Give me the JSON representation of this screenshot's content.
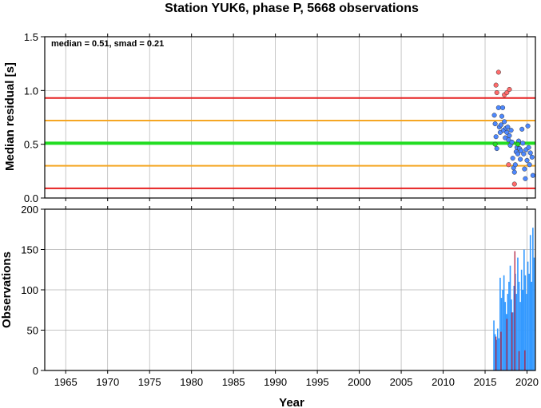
{
  "chart_data": [
    {
      "type": "scatter",
      "title": "Station YUK6, phase P, 5668 observations",
      "annotation": "median = 0.51, smad = 0.21",
      "ylabel": "Median residual [s]",
      "xlabel": "",
      "xlim": [
        1962.5,
        2021.0
      ],
      "ylim": [
        0.0,
        1.5
      ],
      "yticks": [
        "0.0",
        "0.5",
        "1.0",
        "1.5"
      ],
      "grid": true,
      "reference_lines": [
        {
          "value": 0.93,
          "color": "#e62020"
        },
        {
          "value": 0.72,
          "color": "#f5a623"
        },
        {
          "value": 0.51,
          "color": "#22dd22"
        },
        {
          "value": 0.3,
          "color": "#f5a623"
        },
        {
          "value": 0.09,
          "color": "#e62020"
        }
      ],
      "series": [
        {
          "color": "#ff6b6b",
          "points": [
            [
              2016.3,
              1.05
            ],
            [
              2016.4,
              0.98
            ],
            [
              2016.6,
              1.17
            ],
            [
              2017.3,
              0.96
            ],
            [
              2017.6,
              0.98
            ],
            [
              2017.9,
              1.01
            ],
            [
              2017.8,
              0.31
            ],
            [
              2018.5,
              0.13
            ]
          ]
        },
        {
          "color": "#4d88ff",
          "points": [
            [
              2016.1,
              0.77
            ],
            [
              2016.2,
              0.69
            ],
            [
              2016.3,
              0.57
            ],
            [
              2016.4,
              0.46
            ],
            [
              2016.6,
              0.84
            ],
            [
              2016.7,
              0.66
            ],
            [
              2016.8,
              0.61
            ],
            [
              2016.9,
              0.68
            ],
            [
              2017.0,
              0.76
            ],
            [
              2017.1,
              0.84
            ],
            [
              2017.2,
              0.63
            ],
            [
              2017.3,
              0.71
            ],
            [
              2017.4,
              0.56
            ],
            [
              2017.5,
              0.65
            ],
            [
              2017.6,
              0.61
            ],
            [
              2017.7,
              0.66
            ],
            [
              2017.8,
              0.54
            ],
            [
              2017.9,
              0.58
            ],
            [
              2018.0,
              0.49
            ],
            [
              2018.1,
              0.63
            ],
            [
              2018.2,
              0.52
            ],
            [
              2018.3,
              0.37
            ],
            [
              2018.4,
              0.28
            ],
            [
              2018.5,
              0.24
            ],
            [
              2018.6,
              0.31
            ],
            [
              2018.7,
              0.43
            ],
            [
              2018.8,
              0.47
            ],
            [
              2018.9,
              0.41
            ],
            [
              2019.0,
              0.53
            ],
            [
              2019.1,
              0.46
            ],
            [
              2019.2,
              0.36
            ],
            [
              2019.3,
              0.44
            ],
            [
              2019.4,
              0.64
            ],
            [
              2019.5,
              0.51
            ],
            [
              2019.6,
              0.41
            ],
            [
              2019.7,
              0.27
            ],
            [
              2019.8,
              0.18
            ],
            [
              2019.9,
              0.45
            ],
            [
              2020.0,
              0.35
            ],
            [
              2020.1,
              0.67
            ],
            [
              2020.2,
              0.47
            ],
            [
              2020.3,
              0.31
            ],
            [
              2020.4,
              0.42
            ],
            [
              2020.6,
              0.38
            ],
            [
              2020.7,
              0.21
            ]
          ]
        },
        {
          "color": "#22dd22",
          "points": [
            [
              2016.2,
              0.5
            ],
            [
              2018.9,
              0.5
            ]
          ]
        }
      ]
    },
    {
      "type": "bar",
      "ylabel": "Observations",
      "xlabel": "Year",
      "xlim": [
        1962.5,
        2021.0
      ],
      "ylim": [
        0,
        200
      ],
      "yticks": [
        "0",
        "50",
        "100",
        "150",
        "200"
      ],
      "xticks": [
        "1965",
        "1970",
        "1975",
        "1980",
        "1985",
        "1990",
        "1995",
        "2000",
        "2005",
        "2010",
        "2015",
        "2020"
      ],
      "grid": true,
      "series": [
        {
          "color": "#3399ff",
          "points": [
            [
              2016.05,
              62
            ],
            [
              2016.2,
              45
            ],
            [
              2016.35,
              38
            ],
            [
              2016.5,
              52
            ],
            [
              2016.65,
              40
            ],
            [
              2016.8,
              115
            ],
            [
              2016.95,
              90
            ],
            [
              2017.1,
              100
            ],
            [
              2017.25,
              118
            ],
            [
              2017.4,
              85
            ],
            [
              2017.55,
              70
            ],
            [
              2017.7,
              95
            ],
            [
              2017.85,
              110
            ],
            [
              2018.0,
              130
            ],
            [
              2018.15,
              88
            ],
            [
              2018.3,
              72
            ],
            [
              2018.45,
              105
            ],
            [
              2018.6,
              120
            ],
            [
              2018.75,
              95
            ],
            [
              2018.9,
              140
            ],
            [
              2019.05,
              110
            ],
            [
              2019.2,
              85
            ],
            [
              2019.35,
              125
            ],
            [
              2019.5,
              100
            ],
            [
              2019.65,
              150
            ],
            [
              2019.8,
              118
            ],
            [
              2019.95,
              95
            ],
            [
              2020.1,
              135
            ],
            [
              2020.25,
              120
            ],
            [
              2020.4,
              168
            ],
            [
              2020.55,
              110
            ],
            [
              2020.7,
              177
            ],
            [
              2020.85,
              140
            ]
          ]
        },
        {
          "color": "#b02040",
          "points": [
            [
              2016.3,
              42
            ],
            [
              2016.9,
              48
            ],
            [
              2017.6,
              64
            ],
            [
              2018.2,
              72
            ],
            [
              2018.55,
              148
            ],
            [
              2019.05,
              24
            ],
            [
              2019.75,
              25
            ]
          ]
        }
      ]
    }
  ]
}
